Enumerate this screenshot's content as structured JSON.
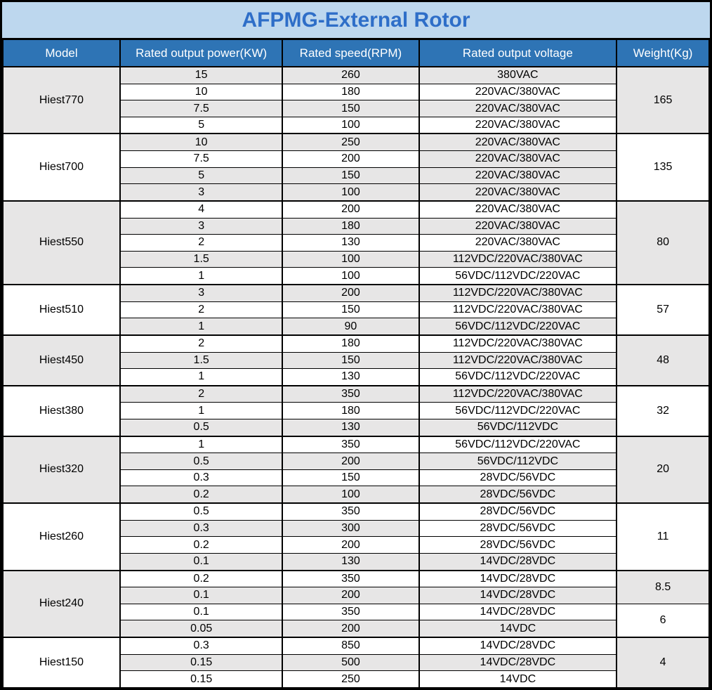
{
  "title": "AFPMG-External Rotor",
  "columns": [
    "Model",
    "Rated output power(KW)",
    "Rated speed(RPM)",
    "Rated output voltage",
    "Weight(Kg)"
  ],
  "colors": {
    "title_bg": "#BDD7EE",
    "title_text": "#2E6EC8",
    "header_bg": "#2E74B5",
    "header_text": "#FFFFFF",
    "row_shaded": "#E7E6E6",
    "row_plain": "#FFFFFF",
    "border": "#000000"
  },
  "groups": [
    {
      "model": "Hiest770",
      "model_shaded": true,
      "weights": [
        {
          "value": "165",
          "rows": 4,
          "shaded": true
        }
      ],
      "rows": [
        {
          "power": "15",
          "speed": "260",
          "voltage": "380VAC",
          "shaded": [
            true,
            true,
            true
          ]
        },
        {
          "power": "10",
          "speed": "180",
          "voltage": "220VAC/380VAC",
          "shaded": [
            false,
            false,
            false
          ]
        },
        {
          "power": "7.5",
          "speed": "150",
          "voltage": "220VAC/380VAC",
          "shaded": [
            true,
            true,
            true
          ]
        },
        {
          "power": "5",
          "speed": "100",
          "voltage": "220VAC/380VAC",
          "shaded": [
            false,
            false,
            false
          ]
        }
      ]
    },
    {
      "model": "Hiest700",
      "model_shaded": false,
      "weights": [
        {
          "value": "135",
          "rows": 4,
          "shaded": false
        }
      ],
      "rows": [
        {
          "power": "10",
          "speed": "250",
          "voltage": "220VAC/380VAC",
          "shaded": [
            true,
            true,
            true
          ]
        },
        {
          "power": "7.5",
          "speed": "200",
          "voltage": "220VAC/380VAC",
          "shaded": [
            false,
            false,
            true
          ]
        },
        {
          "power": "5",
          "speed": "150",
          "voltage": "220VAC/380VAC",
          "shaded": [
            true,
            true,
            true
          ]
        },
        {
          "power": "3",
          "speed": "100",
          "voltage": "220VAC/380VAC",
          "shaded": [
            true,
            true,
            true
          ]
        }
      ]
    },
    {
      "model": "Hiest550",
      "model_shaded": true,
      "weights": [
        {
          "value": "80",
          "rows": 5,
          "shaded": true
        }
      ],
      "rows": [
        {
          "power": "4",
          "speed": "200",
          "voltage": "220VAC/380VAC",
          "shaded": [
            false,
            false,
            false
          ]
        },
        {
          "power": "3",
          "speed": "180",
          "voltage": "220VAC/380VAC",
          "shaded": [
            true,
            true,
            true
          ]
        },
        {
          "power": "2",
          "speed": "130",
          "voltage": "220VAC/380VAC",
          "shaded": [
            false,
            false,
            false
          ]
        },
        {
          "power": "1.5",
          "speed": "100",
          "voltage": "112VDC/220VAC/380VAC",
          "shaded": [
            true,
            true,
            true
          ]
        },
        {
          "power": "1",
          "speed": "100",
          "voltage": "56VDC/112VDC/220VAC",
          "shaded": [
            false,
            false,
            false
          ]
        }
      ]
    },
    {
      "model": "Hiest510",
      "model_shaded": false,
      "weights": [
        {
          "value": "57",
          "rows": 3,
          "shaded": false
        }
      ],
      "rows": [
        {
          "power": "3",
          "speed": "200",
          "voltage": "112VDC/220VAC/380VAC",
          "shaded": [
            true,
            true,
            true
          ]
        },
        {
          "power": "2",
          "speed": "150",
          "voltage": "112VDC/220VAC/380VAC",
          "shaded": [
            false,
            false,
            false
          ]
        },
        {
          "power": "1",
          "speed": "90",
          "voltage": "56VDC/112VDC/220VAC",
          "shaded": [
            true,
            true,
            true
          ]
        }
      ]
    },
    {
      "model": "Hiest450",
      "model_shaded": true,
      "weights": [
        {
          "value": "48",
          "rows": 3,
          "shaded": true
        }
      ],
      "rows": [
        {
          "power": "2",
          "speed": "180",
          "voltage": "112VDC/220VAC/380VAC",
          "shaded": [
            false,
            false,
            false
          ]
        },
        {
          "power": "1.5",
          "speed": "150",
          "voltage": "112VDC/220VAC/380VAC",
          "shaded": [
            true,
            true,
            true
          ]
        },
        {
          "power": "1",
          "speed": "130",
          "voltage": "56VDC/112VDC/220VAC",
          "shaded": [
            false,
            false,
            false
          ]
        }
      ]
    },
    {
      "model": "Hiest380",
      "model_shaded": false,
      "weights": [
        {
          "value": "32",
          "rows": 3,
          "shaded": false
        }
      ],
      "rows": [
        {
          "power": "2",
          "speed": "350",
          "voltage": "112VDC/220VAC/380VAC",
          "shaded": [
            true,
            true,
            true
          ]
        },
        {
          "power": "1",
          "speed": "180",
          "voltage": "56VDC/112VDC/220VAC",
          "shaded": [
            false,
            false,
            false
          ]
        },
        {
          "power": "0.5",
          "speed": "130",
          "voltage": "56VDC/112VDC",
          "shaded": [
            true,
            true,
            true
          ]
        }
      ]
    },
    {
      "model": "Hiest320",
      "model_shaded": true,
      "weights": [
        {
          "value": "20",
          "rows": 4,
          "shaded": true
        }
      ],
      "rows": [
        {
          "power": "1",
          "speed": "350",
          "voltage": "56VDC/112VDC/220VAC",
          "shaded": [
            false,
            false,
            false
          ]
        },
        {
          "power": "0.5",
          "speed": "200",
          "voltage": "56VDC/112VDC",
          "shaded": [
            true,
            true,
            true
          ]
        },
        {
          "power": "0.3",
          "speed": "150",
          "voltage": "28VDC/56VDC",
          "shaded": [
            false,
            false,
            false
          ]
        },
        {
          "power": "0.2",
          "speed": "100",
          "voltage": "28VDC/56VDC",
          "shaded": [
            true,
            true,
            true
          ]
        }
      ]
    },
    {
      "model": "Hiest260",
      "model_shaded": false,
      "weights": [
        {
          "value": "11",
          "rows": 4,
          "shaded": false
        }
      ],
      "rows": [
        {
          "power": "0.5",
          "speed": "350",
          "voltage": "28VDC/56VDC",
          "shaded": [
            false,
            false,
            false
          ]
        },
        {
          "power": "0.3",
          "speed": "300",
          "voltage": "28VDC/56VDC",
          "shaded": [
            true,
            true,
            false
          ]
        },
        {
          "power": "0.2",
          "speed": "200",
          "voltage": "28VDC/56VDC",
          "shaded": [
            false,
            false,
            false
          ]
        },
        {
          "power": "0.1",
          "speed": "130",
          "voltage": "14VDC/28VDC",
          "shaded": [
            true,
            true,
            true
          ]
        }
      ]
    },
    {
      "model": "Hiest240",
      "model_shaded": true,
      "weights": [
        {
          "value": "8.5",
          "rows": 2,
          "shaded": true
        },
        {
          "value": "6",
          "rows": 2,
          "shaded": false
        }
      ],
      "rows": [
        {
          "power": "0.2",
          "speed": "350",
          "voltage": "14VDC/28VDC",
          "shaded": [
            false,
            false,
            false
          ]
        },
        {
          "power": "0.1",
          "speed": "200",
          "voltage": "14VDC/28VDC",
          "shaded": [
            true,
            true,
            true
          ]
        },
        {
          "power": "0.1",
          "speed": "350",
          "voltage": "14VDC/28VDC",
          "shaded": [
            false,
            false,
            false
          ]
        },
        {
          "power": "0.05",
          "speed": "200",
          "voltage": "14VDC",
          "shaded": [
            true,
            true,
            true
          ]
        }
      ]
    },
    {
      "model": "Hiest150",
      "model_shaded": false,
      "weights": [
        {
          "value": "4",
          "rows": 3,
          "shaded": true
        }
      ],
      "rows": [
        {
          "power": "0.3",
          "speed": "850",
          "voltage": "14VDC/28VDC",
          "shaded": [
            false,
            false,
            false
          ]
        },
        {
          "power": "0.15",
          "speed": "500",
          "voltage": "14VDC/28VDC",
          "shaded": [
            true,
            true,
            true
          ]
        },
        {
          "power": "0.15",
          "speed": "250",
          "voltage": "14VDC",
          "shaded": [
            false,
            false,
            false
          ]
        }
      ]
    }
  ]
}
